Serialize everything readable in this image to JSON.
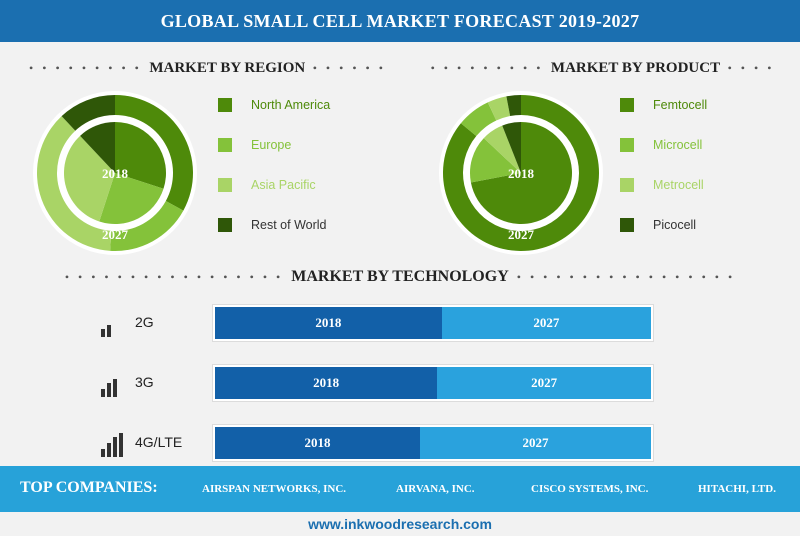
{
  "title": "GLOBAL SMALL CELL MARKET FORECAST 2019-2027",
  "sections": {
    "region": "MARKET BY REGION",
    "product": "MARKET BY PRODUCT",
    "technology": "MARKET BY TECHNOLOGY"
  },
  "colors": {
    "dark_green": "#4e8a0a",
    "mid_green": "#84c23a",
    "light_green": "#a9d466",
    "darkest_green": "#2f5708",
    "dark_blue": "#1260a8",
    "light_blue": "#2aa2dd",
    "header_blue": "#1b6fb0"
  },
  "chart_data": [
    {
      "type": "pie",
      "section": "MARKET BY REGION",
      "inner_label": "2018",
      "outer_label": "2027",
      "categories": [
        "North America",
        "Europe",
        "Asia Pacific",
        "Rest of World"
      ],
      "series": [
        {
          "name": "2018",
          "values": [
            30,
            25,
            33,
            12
          ]
        },
        {
          "name": "2027",
          "values": [
            33,
            18,
            37,
            12
          ]
        }
      ]
    },
    {
      "type": "pie",
      "section": "MARKET BY PRODUCT",
      "inner_label": "2018",
      "outer_label": "2027",
      "categories": [
        "Femtocell",
        "Microcell",
        "Metrocell",
        "Picocell"
      ],
      "series": [
        {
          "name": "2018",
          "values": [
            72,
            15,
            7,
            6
          ]
        },
        {
          "name": "2027",
          "values": [
            86,
            7,
            4,
            3
          ]
        }
      ]
    },
    {
      "type": "bar",
      "section": "MARKET BY TECHNOLOGY",
      "categories": [
        "2G",
        "3G",
        "4G/LTE"
      ],
      "series": [
        {
          "name": "2018",
          "values": [
            52,
            51,
            47
          ]
        },
        {
          "name": "2027",
          "values": [
            48,
            49,
            53
          ]
        }
      ]
    }
  ],
  "companies": {
    "title": "TOP COMPANIES:",
    "names": [
      "AIRSPAN NETWORKS, INC.",
      "AIRVANA, INC.",
      "CISCO SYSTEMS, INC.",
      "HITACHI, LTD."
    ]
  },
  "website": "www.inkwoodresearch.com"
}
